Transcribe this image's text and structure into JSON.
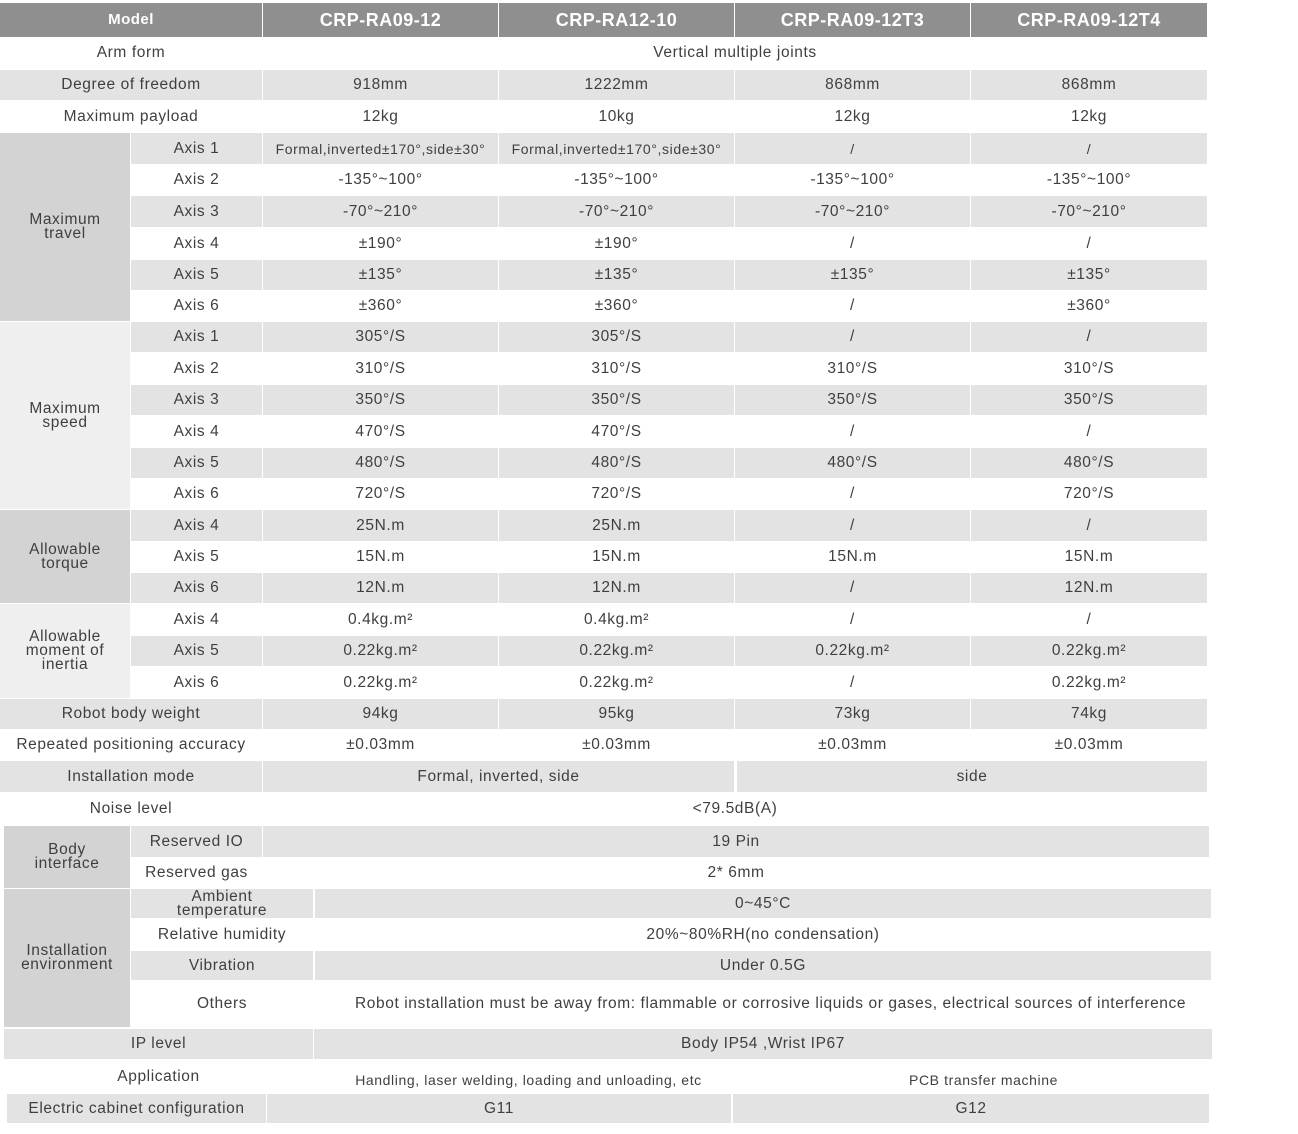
{
  "colors": {
    "header_bg": "#8f8f8f",
    "row_gray": "#e3e3e3",
    "group_dark": "#d3d3d3",
    "group_light": "#efefef",
    "text": "#3f3f3f"
  },
  "header": {
    "label": "Model",
    "models": [
      "CRP-RA09-12",
      "CRP-RA12-10",
      "CRP-RA09-12T3",
      "CRP-RA09-12T4"
    ]
  },
  "arm_form": {
    "label": "Arm form",
    "value": "Vertical multiple joints"
  },
  "degree_of_freedom": {
    "label": "Degree of freedom",
    "values": [
      "918mm",
      "1222mm",
      "868mm",
      "868mm"
    ]
  },
  "maximum_payload": {
    "label": "Maximum payload",
    "values": [
      "12kg",
      "10kg",
      "12kg",
      "12kg"
    ]
  },
  "maximum_travel": {
    "label": "Maximum travel",
    "rows": [
      {
        "axis": "Axis 1",
        "values": [
          "Formal,inverted±170°,side±30°",
          "Formal,inverted±170°,side±30°",
          "/",
          "/"
        ]
      },
      {
        "axis": "Axis 2",
        "values": [
          "-135°~100°",
          "-135°~100°",
          "-135°~100°",
          "-135°~100°"
        ]
      },
      {
        "axis": "Axis 3",
        "values": [
          "-70°~210°",
          "-70°~210°",
          "-70°~210°",
          "-70°~210°"
        ]
      },
      {
        "axis": "Axis 4",
        "values": [
          "±190°",
          "±190°",
          "/",
          "/"
        ]
      },
      {
        "axis": "Axis 5",
        "values": [
          "±135°",
          "±135°",
          "±135°",
          "±135°"
        ]
      },
      {
        "axis": "Axis 6",
        "values": [
          "±360°",
          "±360°",
          "/",
          "±360°"
        ]
      }
    ]
  },
  "maximum_speed": {
    "label": "Maximum speed",
    "rows": [
      {
        "axis": "Axis 1",
        "values": [
          "305°/S",
          "305°/S",
          "/",
          "/"
        ]
      },
      {
        "axis": "Axis 2",
        "values": [
          "310°/S",
          "310°/S",
          "310°/S",
          "310°/S"
        ]
      },
      {
        "axis": "Axis 3",
        "values": [
          "350°/S",
          "350°/S",
          "350°/S",
          "350°/S"
        ]
      },
      {
        "axis": "Axis 4",
        "values": [
          "470°/S",
          "470°/S",
          "/",
          "/"
        ]
      },
      {
        "axis": "Axis 5",
        "values": [
          "480°/S",
          "480°/S",
          "480°/S",
          "480°/S"
        ]
      },
      {
        "axis": "Axis 6",
        "values": [
          "720°/S",
          "720°/S",
          "/",
          "720°/S"
        ]
      }
    ]
  },
  "allowable_torque": {
    "label": "Allowable torque",
    "rows": [
      {
        "axis": "Axis 4",
        "values": [
          "25N.m",
          "25N.m",
          "/",
          "/"
        ]
      },
      {
        "axis": "Axis 5",
        "values": [
          "15N.m",
          "15N.m",
          "15N.m",
          "15N.m"
        ]
      },
      {
        "axis": "Axis 6",
        "values": [
          "12N.m",
          "12N.m",
          "/",
          "12N.m"
        ]
      }
    ]
  },
  "allowable_moment_of_inertia": {
    "label": "Allowable moment of inertia",
    "rows": [
      {
        "axis": "Axis 4",
        "values": [
          "0.4kg.m²",
          "0.4kg.m²",
          "/",
          "/"
        ]
      },
      {
        "axis": "Axis 5",
        "values": [
          "0.22kg.m²",
          "0.22kg.m²",
          "0.22kg.m²",
          "0.22kg.m²"
        ]
      },
      {
        "axis": "Axis 6",
        "values": [
          "0.22kg.m²",
          "0.22kg.m²",
          "/",
          "0.22kg.m²"
        ]
      }
    ]
  },
  "robot_body_weight": {
    "label": "Robot body weight",
    "values": [
      "94kg",
      "95kg",
      "73kg",
      "74kg"
    ]
  },
  "repeated_positioning_accuracy": {
    "label": "Repeated positioning accuracy",
    "values": [
      "±0.03mm",
      "±0.03mm",
      "±0.03mm",
      "±0.03mm"
    ]
  },
  "installation_mode": {
    "label": "Installation mode",
    "values": [
      "Formal, inverted, side",
      "side"
    ]
  },
  "noise_level": {
    "label": "Noise level",
    "value": "<79.5dB(A)"
  },
  "body_interface": {
    "label": "Body interface",
    "rows": [
      {
        "label": "Reserved IO",
        "value": "19 Pin"
      },
      {
        "label": "Reserved gas",
        "value": "2* 6mm"
      }
    ]
  },
  "installation_environment": {
    "label": "Installation environment",
    "rows": [
      {
        "label": "Ambient temperature",
        "value": "0~45°C"
      },
      {
        "label": "Relative humidity",
        "value": "20%~80%RH(no condensation)"
      },
      {
        "label": "Vibration",
        "value": "Under 0.5G"
      },
      {
        "label": "Others",
        "value": "Robot installation must be away from: flammable or corrosive liquids or gases, electrical sources of interference"
      }
    ]
  },
  "ip_level": {
    "label": "IP level",
    "value": "Body IP54 ,Wrist IP67"
  },
  "application": {
    "label": "Application",
    "values": [
      "Handling, laser welding, loading and unloading, etc",
      "PCB transfer machine"
    ]
  },
  "electric_cabinet_configuration": {
    "label": "Electric cabinet configuration",
    "values": [
      "G11",
      "G12"
    ]
  }
}
